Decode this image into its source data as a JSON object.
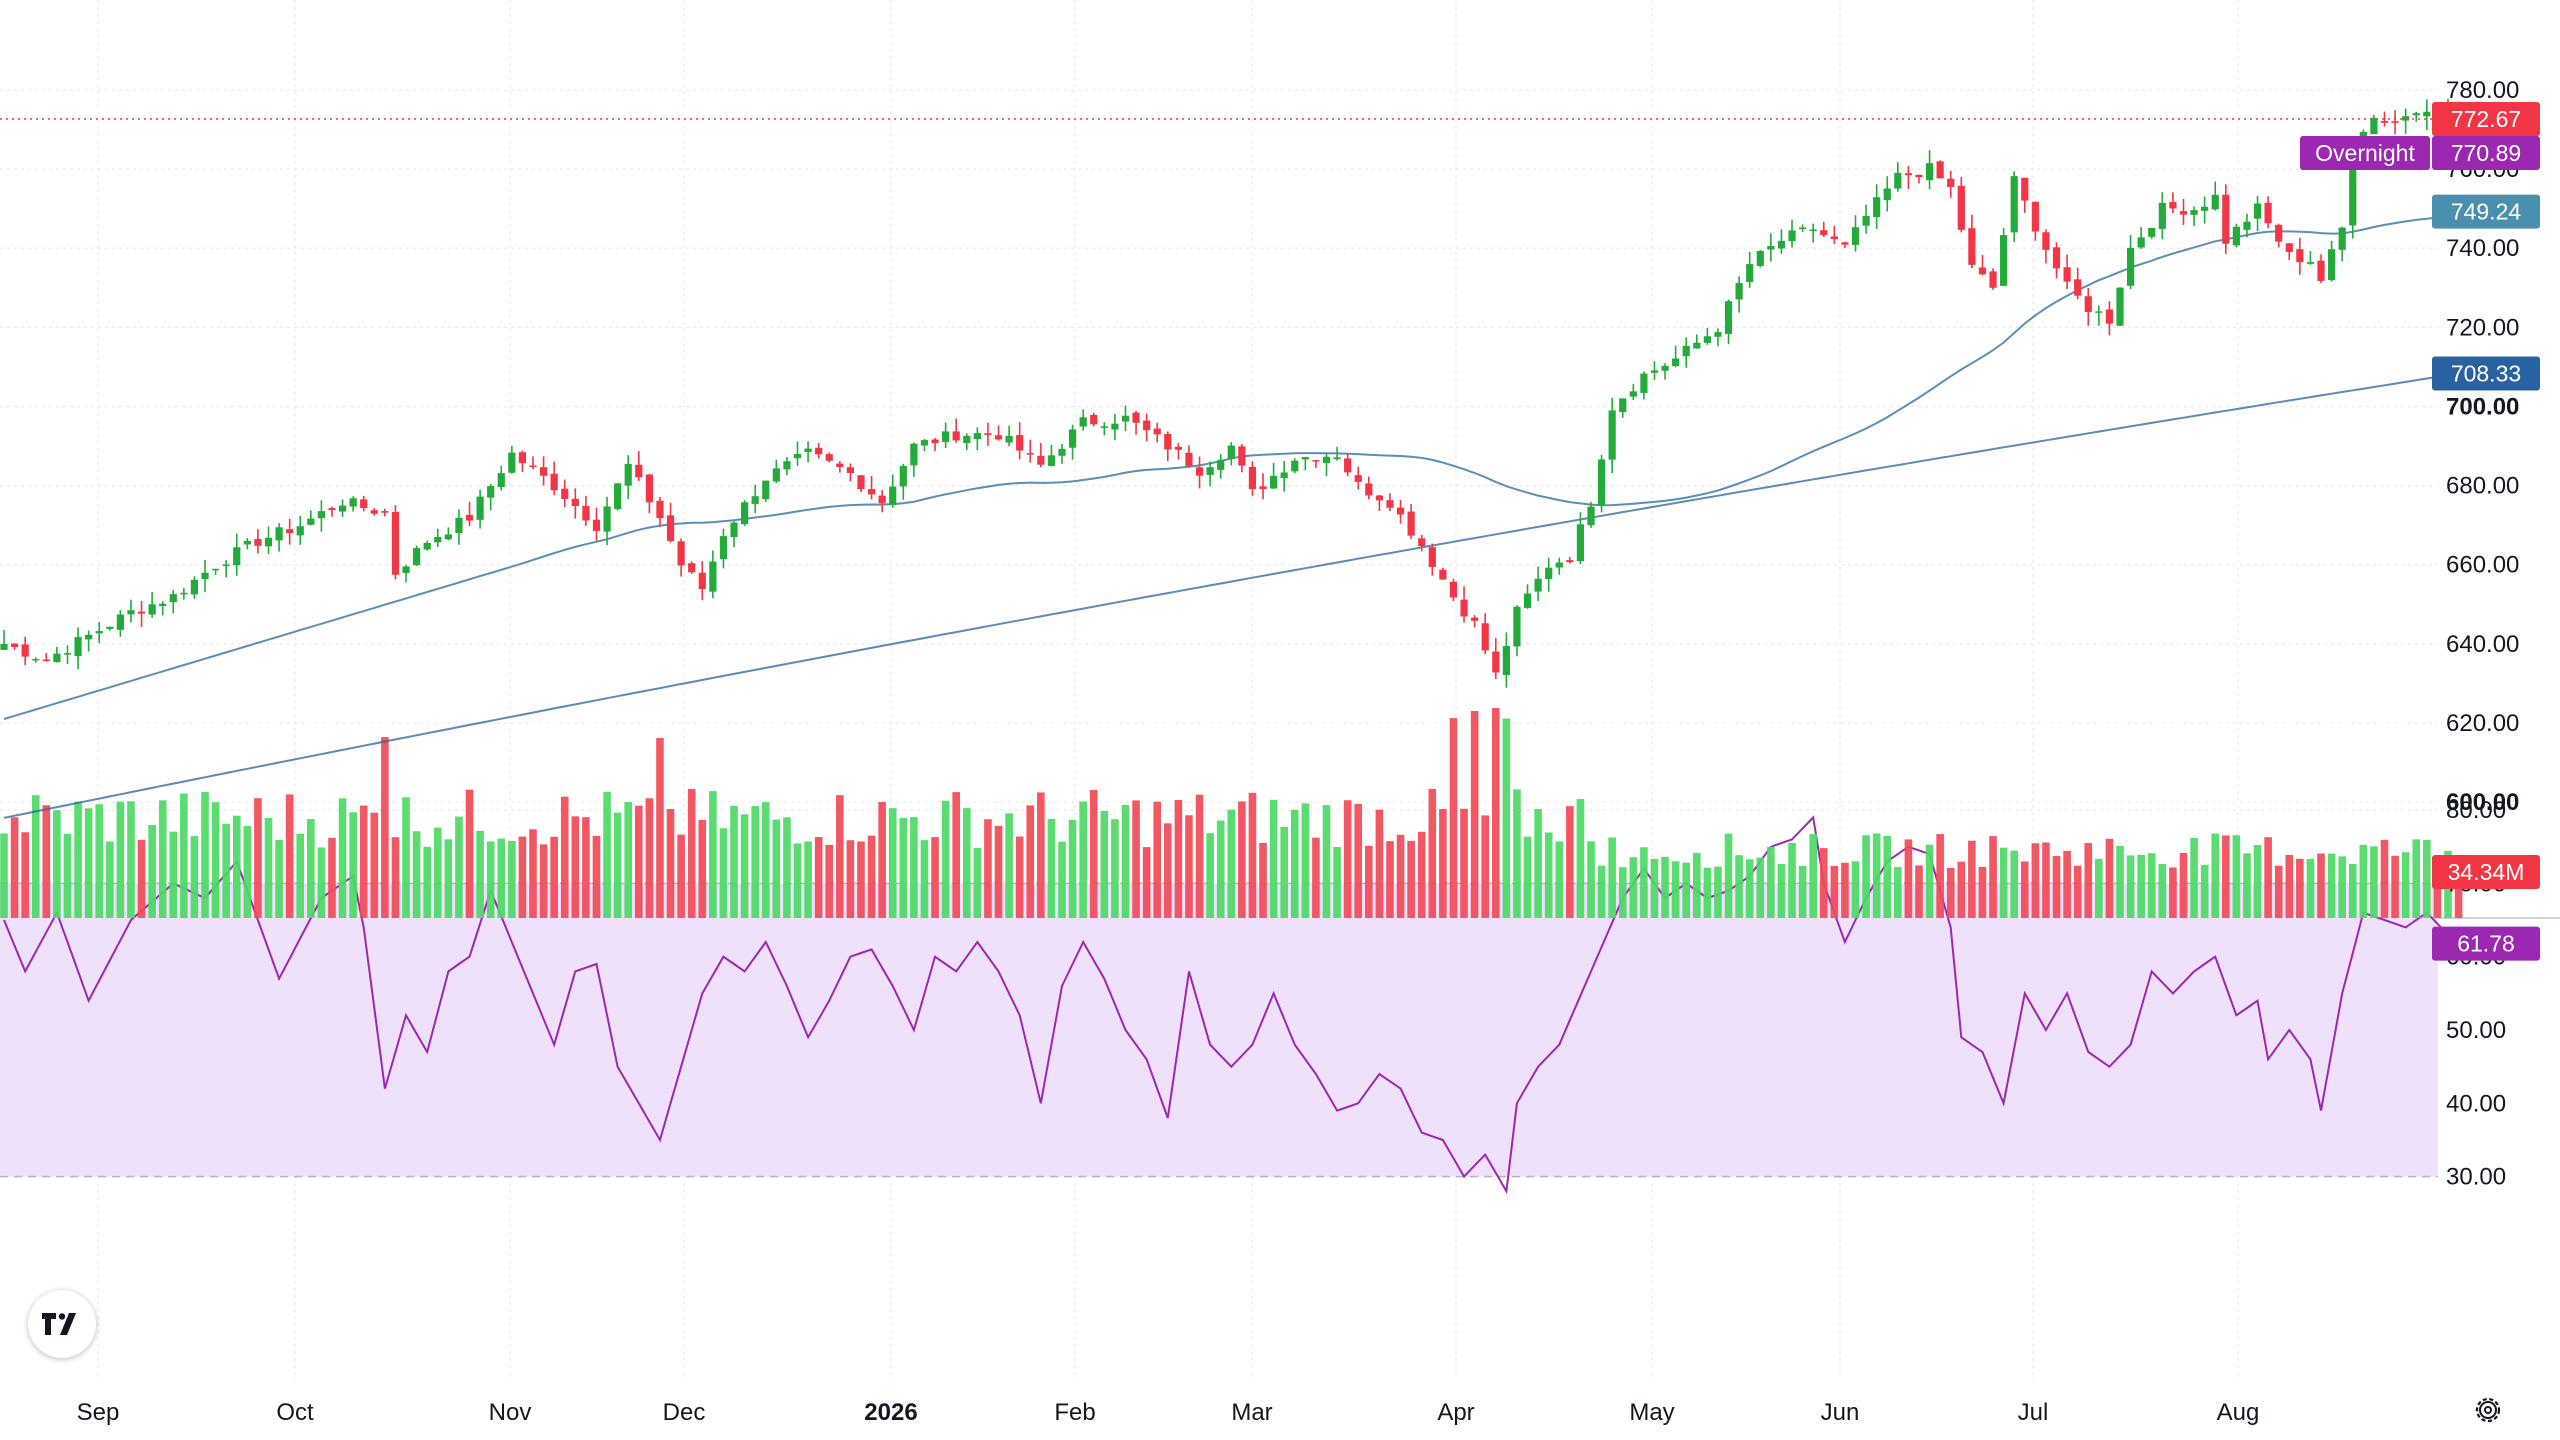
{
  "chart_data": {
    "type": "candlestick",
    "price_axis": {
      "ticks": [
        "780.00",
        "760.00",
        "740.00",
        "720.00",
        "700.00",
        "680.00",
        "660.00",
        "640.00",
        "620.00",
        "600.00"
      ],
      "bold_ticks": [
        "700.00",
        "600.00"
      ],
      "ylim": [
        583,
        787
      ]
    },
    "time_axis": {
      "labels": [
        "Sep",
        "Oct",
        "Nov",
        "Dec",
        "2026",
        "Feb",
        "Mar",
        "Apr",
        "May",
        "Jun",
        "Jul",
        "Aug"
      ],
      "bold_labels": [
        "2026"
      ]
    },
    "last_price": {
      "value": "772.67",
      "color": "#f23645"
    },
    "overnight": {
      "label": "Overnight",
      "value": "770.89",
      "color": "#9c27b0"
    },
    "moving_averages": [
      {
        "value": "749.24",
        "color": "#4a90ae"
      },
      {
        "value": "708.33",
        "color": "#2962a0"
      }
    ],
    "volume_label": {
      "value": "34.34M",
      "color": "#f23645"
    },
    "price_keypoints": [
      [
        0,
        640
      ],
      [
        4,
        636
      ],
      [
        8,
        642
      ],
      [
        12,
        648
      ],
      [
        16,
        652
      ],
      [
        20,
        660
      ],
      [
        24,
        666
      ],
      [
        28,
        670
      ],
      [
        32,
        676
      ],
      [
        36,
        673
      ],
      [
        37,
        658
      ],
      [
        40,
        666
      ],
      [
        44,
        672
      ],
      [
        48,
        688
      ],
      [
        52,
        680
      ],
      [
        56,
        670
      ],
      [
        59,
        685
      ],
      [
        62,
        672
      ],
      [
        64,
        660
      ],
      [
        66,
        654
      ],
      [
        68,
        668
      ],
      [
        72,
        682
      ],
      [
        76,
        688
      ],
      [
        80,
        683
      ],
      [
        83,
        676
      ],
      [
        86,
        690
      ],
      [
        90,
        693
      ],
      [
        94,
        693
      ],
      [
        98,
        685
      ],
      [
        102,
        696
      ],
      [
        106,
        697
      ],
      [
        110,
        690
      ],
      [
        113,
        684
      ],
      [
        116,
        690
      ],
      [
        118,
        678
      ],
      [
        122,
        687
      ],
      [
        126,
        688
      ],
      [
        128,
        680
      ],
      [
        131,
        676
      ],
      [
        134,
        665
      ],
      [
        137,
        652
      ],
      [
        139,
        645
      ],
      [
        141,
        632
      ],
      [
        143,
        648
      ],
      [
        146,
        660
      ],
      [
        148,
        662
      ],
      [
        150,
        676
      ],
      [
        152,
        700
      ],
      [
        155,
        708
      ],
      [
        158,
        712
      ],
      [
        162,
        720
      ],
      [
        165,
        736
      ],
      [
        168,
        742
      ],
      [
        171,
        745
      ],
      [
        174,
        740
      ],
      [
        176,
        748
      ],
      [
        179,
        758
      ],
      [
        182,
        760
      ],
      [
        184,
        755
      ],
      [
        186,
        735
      ],
      [
        188,
        730
      ],
      [
        190,
        757
      ],
      [
        193,
        740
      ],
      [
        195,
        730
      ],
      [
        197,
        725
      ],
      [
        199,
        722
      ],
      [
        201,
        740
      ],
      [
        204,
        750
      ],
      [
        207,
        750
      ],
      [
        209,
        753
      ],
      [
        210,
        742
      ],
      [
        213,
        750
      ],
      [
        216,
        738
      ],
      [
        218,
        737
      ],
      [
        219,
        732
      ],
      [
        221,
        745
      ],
      [
        222,
        768
      ],
      [
        224,
        773
      ],
      [
        226,
        772
      ],
      [
        229,
        776
      ],
      [
        231,
        774
      ],
      [
        232,
        772.67
      ]
    ],
    "rsi_keypoints": [
      [
        0,
        65
      ],
      [
        2,
        58
      ],
      [
        5,
        66
      ],
      [
        8,
        54
      ],
      [
        12,
        65
      ],
      [
        16,
        70
      ],
      [
        19,
        68
      ],
      [
        22,
        73
      ],
      [
        24,
        65
      ],
      [
        26,
        57
      ],
      [
        30,
        68
      ],
      [
        33,
        71
      ],
      [
        34,
        64
      ],
      [
        36,
        42
      ],
      [
        38,
        52
      ],
      [
        40,
        47
      ],
      [
        42,
        58
      ],
      [
        44,
        60
      ],
      [
        46,
        69
      ],
      [
        48,
        62
      ],
      [
        50,
        55
      ],
      [
        52,
        48
      ],
      [
        54,
        58
      ],
      [
        56,
        59
      ],
      [
        58,
        45
      ],
      [
        60,
        40
      ],
      [
        62,
        35
      ],
      [
        64,
        45
      ],
      [
        66,
        55
      ],
      [
        68,
        60
      ],
      [
        70,
        58
      ],
      [
        72,
        62
      ],
      [
        74,
        56
      ],
      [
        76,
        49
      ],
      [
        78,
        54
      ],
      [
        80,
        60
      ],
      [
        82,
        61
      ],
      [
        84,
        56
      ],
      [
        86,
        50
      ],
      [
        88,
        60
      ],
      [
        90,
        58
      ],
      [
        92,
        62
      ],
      [
        94,
        58
      ],
      [
        96,
        52
      ],
      [
        98,
        40
      ],
      [
        100,
        56
      ],
      [
        102,
        62
      ],
      [
        104,
        57
      ],
      [
        106,
        50
      ],
      [
        108,
        46
      ],
      [
        110,
        38
      ],
      [
        112,
        58
      ],
      [
        114,
        48
      ],
      [
        116,
        45
      ],
      [
        118,
        48
      ],
      [
        120,
        55
      ],
      [
        122,
        48
      ],
      [
        124,
        44
      ],
      [
        126,
        39
      ],
      [
        128,
        40
      ],
      [
        130,
        44
      ],
      [
        132,
        42
      ],
      [
        134,
        36
      ],
      [
        136,
        35
      ],
      [
        138,
        30
      ],
      [
        140,
        33
      ],
      [
        142,
        28
      ],
      [
        143,
        40
      ],
      [
        145,
        45
      ],
      [
        147,
        48
      ],
      [
        150,
        58
      ],
      [
        153,
        68
      ],
      [
        155,
        72
      ],
      [
        157,
        68
      ],
      [
        159,
        70
      ],
      [
        161,
        68
      ],
      [
        163,
        69
      ],
      [
        165,
        71
      ],
      [
        167,
        75
      ],
      [
        169,
        76
      ],
      [
        171,
        79
      ],
      [
        172,
        70
      ],
      [
        174,
        62
      ],
      [
        176,
        68
      ],
      [
        178,
        73
      ],
      [
        180,
        75
      ],
      [
        182,
        74
      ],
      [
        184,
        64
      ],
      [
        185,
        49
      ],
      [
        187,
        47
      ],
      [
        189,
        40
      ],
      [
        191,
        55
      ],
      [
        193,
        50
      ],
      [
        195,
        55
      ],
      [
        197,
        47
      ],
      [
        199,
        45
      ],
      [
        201,
        48
      ],
      [
        203,
        58
      ],
      [
        205,
        55
      ],
      [
        207,
        58
      ],
      [
        209,
        60
      ],
      [
        211,
        52
      ],
      [
        213,
        54
      ],
      [
        214,
        46
      ],
      [
        216,
        50
      ],
      [
        218,
        46
      ],
      [
        219,
        39
      ],
      [
        221,
        55
      ],
      [
        223,
        66
      ],
      [
        225,
        65
      ],
      [
        227,
        64
      ],
      [
        229,
        66
      ],
      [
        231,
        63
      ],
      [
        232,
        61.78
      ]
    ],
    "rsi_axis": {
      "ticks": [
        "80.00",
        "70.00",
        "60.00",
        "50.00",
        "40.00",
        "30.00"
      ],
      "band": [
        30,
        70
      ],
      "ylim": [
        27,
        82
      ]
    },
    "rsi_label": {
      "value": "61.78",
      "color": "#9c27b0"
    },
    "colors": {
      "up": "#22ab3a",
      "down": "#f23645",
      "ma": "#5b8fb8",
      "rsi": "#9c27b0",
      "band": "#efe0fc"
    }
  }
}
